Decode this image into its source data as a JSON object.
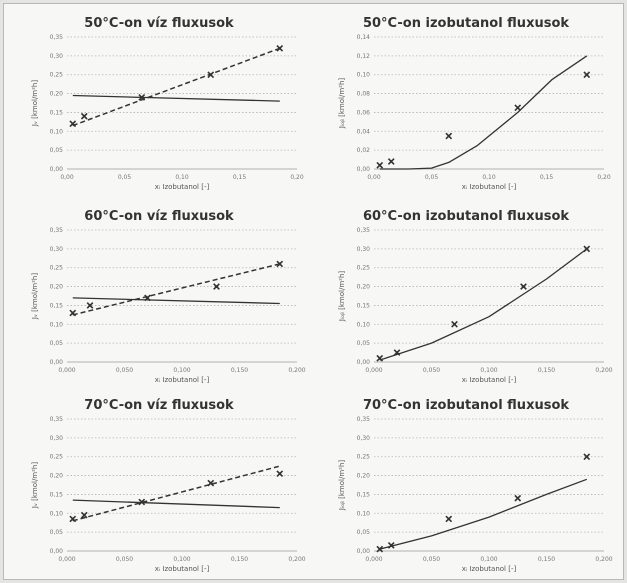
{
  "colors": {
    "ink": "#333333",
    "paper": "#f7f7f5",
    "grid": "#b5b5b5"
  },
  "chart_data": [
    {
      "type": "scatter",
      "title": "50°C-on víz fluxusok",
      "xlabel": "xᵢ Izobutanol [-]",
      "ylabel": "Jᵥ [kmol/m²h]",
      "xticks": [
        "0,00",
        "0,05",
        "0,10",
        "0,15",
        "0,20"
      ],
      "yticks": [
        "0,00",
        "0,05",
        "0,10",
        "0,15",
        "0,20",
        "0,25",
        "0,30",
        "0,35"
      ],
      "xlim": [
        0,
        0.2
      ],
      "ylim": [
        0,
        0.35
      ],
      "grid": "horizontal",
      "series": [
        {
          "style": "markers",
          "x": [
            0.005,
            0.015,
            0.065,
            0.125,
            0.185
          ],
          "y": [
            0.12,
            0.14,
            0.19,
            0.25,
            0.32
          ]
        },
        {
          "style": "dashed",
          "x": [
            0.005,
            0.185
          ],
          "y": [
            0.115,
            0.32
          ]
        },
        {
          "style": "solid",
          "x": [
            0.005,
            0.185
          ],
          "y": [
            0.195,
            0.18
          ]
        }
      ]
    },
    {
      "type": "scatter",
      "title": "50°C-on izobutanol fluxusok",
      "xlabel": "xᵢ Izobutanol [-]",
      "ylabel": "Jᵢₒᵦ [kmol/m²h]",
      "xticks": [
        "0,00",
        "0,05",
        "0,10",
        "0,15",
        "0,20"
      ],
      "yticks": [
        "0,00",
        "0,02",
        "0,04",
        "0,06",
        "0,08",
        "0,10",
        "0,12",
        "0,14"
      ],
      "xlim": [
        0,
        0.2
      ],
      "ylim": [
        0,
        0.14
      ],
      "grid": "horizontal",
      "series": [
        {
          "style": "markers",
          "x": [
            0.005,
            0.015,
            0.065,
            0.125,
            0.185
          ],
          "y": [
            0.004,
            0.008,
            0.035,
            0.065,
            0.1
          ]
        },
        {
          "style": "solid-curve",
          "x": [
            0.005,
            0.03,
            0.05,
            0.065,
            0.09,
            0.125,
            0.155,
            0.185
          ],
          "y": [
            0.0,
            0.0,
            0.001,
            0.007,
            0.025,
            0.06,
            0.095,
            0.12
          ]
        }
      ]
    },
    {
      "type": "scatter",
      "title": "60°C-on víz fluxusok",
      "xlabel": "xᵢ Izobutanol [-]",
      "ylabel": "Jᵥ [kmol/m²h]",
      "xticks": [
        "0,000",
        "0,050",
        "0,100",
        "0,150",
        "0,200"
      ],
      "yticks": [
        "0,00",
        "0,05",
        "0,10",
        "0,15",
        "0,20",
        "0,25",
        "0,30",
        "0,35"
      ],
      "xlim": [
        0,
        0.2
      ],
      "ylim": [
        0,
        0.35
      ],
      "grid": "horizontal",
      "series": [
        {
          "style": "markers",
          "x": [
            0.005,
            0.02,
            0.07,
            0.13,
            0.185
          ],
          "y": [
            0.13,
            0.15,
            0.17,
            0.2,
            0.26
          ]
        },
        {
          "style": "dashed",
          "x": [
            0.005,
            0.185
          ],
          "y": [
            0.125,
            0.26
          ]
        },
        {
          "style": "solid",
          "x": [
            0.005,
            0.185
          ],
          "y": [
            0.17,
            0.155
          ]
        }
      ]
    },
    {
      "type": "scatter",
      "title": "60°C-on izobutanol fluxusok",
      "xlabel": "xᵢ Izobutanol [-]",
      "ylabel": "Jᵢₒᵦ [kmol/m²h]",
      "xticks": [
        "0,000",
        "0,050",
        "0,100",
        "0,150",
        "0,200"
      ],
      "yticks": [
        "0,00",
        "0,05",
        "0,10",
        "0,15",
        "0,20",
        "0,25",
        "0,30",
        "0,35"
      ],
      "xlim": [
        0,
        0.2
      ],
      "ylim": [
        0,
        0.35
      ],
      "grid": "horizontal",
      "series": [
        {
          "style": "markers",
          "x": [
            0.005,
            0.02,
            0.07,
            0.13,
            0.185
          ],
          "y": [
            0.01,
            0.025,
            0.1,
            0.2,
            0.3
          ]
        },
        {
          "style": "solid-curve",
          "x": [
            0.005,
            0.05,
            0.1,
            0.15,
            0.185
          ],
          "y": [
            0.005,
            0.05,
            0.12,
            0.22,
            0.3
          ]
        }
      ]
    },
    {
      "type": "scatter",
      "title": "70°C-on víz fluxusok",
      "xlabel": "xᵢ Izobutanol [-]",
      "ylabel": "Jᵥ [kmol/m²h]",
      "xticks": [
        "0,000",
        "0,050",
        "0,100",
        "0,150",
        "0,200"
      ],
      "yticks": [
        "0,00",
        "0,05",
        "0,10",
        "0,15",
        "0,20",
        "0,25",
        "0,30",
        "0,35"
      ],
      "xlim": [
        0,
        0.2
      ],
      "ylim": [
        0,
        0.35
      ],
      "grid": "horizontal",
      "series": [
        {
          "style": "markers",
          "x": [
            0.005,
            0.015,
            0.065,
            0.125,
            0.185
          ],
          "y": [
            0.085,
            0.095,
            0.13,
            0.18,
            0.205
          ]
        },
        {
          "style": "dashed",
          "x": [
            0.005,
            0.185
          ],
          "y": [
            0.08,
            0.225
          ]
        },
        {
          "style": "solid",
          "x": [
            0.005,
            0.185
          ],
          "y": [
            0.135,
            0.115
          ]
        }
      ]
    },
    {
      "type": "scatter",
      "title": "70°C-on izobutanol fluxusok",
      "xlabel": "xᵢ Izobutanol [-]",
      "ylabel": "Jᵢₒᵦ [kmol/m²h]",
      "xticks": [
        "0,000",
        "0,050",
        "0,100",
        "0,150",
        "0,200"
      ],
      "yticks": [
        "0,00",
        "0,05",
        "0,10",
        "0,15",
        "0,20",
        "0,25",
        "0,30",
        "0,35"
      ],
      "xlim": [
        0,
        0.2
      ],
      "ylim": [
        0,
        0.35
      ],
      "grid": "horizontal",
      "series": [
        {
          "style": "markers",
          "x": [
            0.005,
            0.015,
            0.065,
            0.125,
            0.185
          ],
          "y": [
            0.005,
            0.015,
            0.085,
            0.14,
            0.25
          ]
        },
        {
          "style": "solid-curve",
          "x": [
            0.005,
            0.05,
            0.1,
            0.15,
            0.185
          ],
          "y": [
            0.005,
            0.04,
            0.09,
            0.15,
            0.19
          ]
        }
      ]
    }
  ]
}
